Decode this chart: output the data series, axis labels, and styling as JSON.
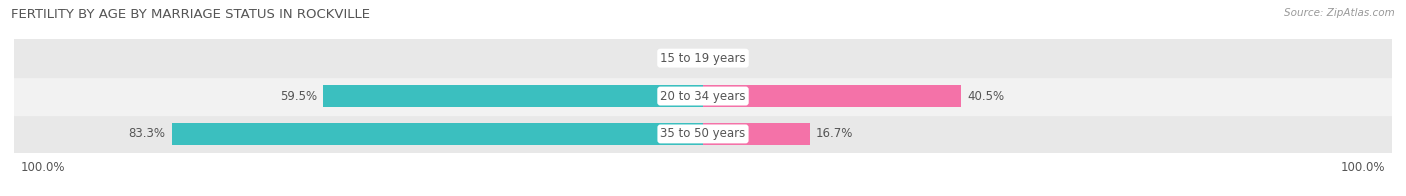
{
  "title": "FERTILITY BY AGE BY MARRIAGE STATUS IN ROCKVILLE",
  "source": "Source: ZipAtlas.com",
  "categories": [
    "35 to 50 years",
    "20 to 34 years",
    "15 to 19 years"
  ],
  "married_values": [
    83.3,
    59.5,
    0.0
  ],
  "unmarried_values": [
    16.7,
    40.5,
    0.0
  ],
  "married_color": "#3bbfbf",
  "unmarried_color": "#f472a8",
  "row_bg_colors": [
    "#e8e8e8",
    "#f2f2f2",
    "#e8e8e8"
  ],
  "label_color": "#555555",
  "title_color": "#555555",
  "axis_label_left": "100.0%",
  "axis_label_right": "100.0%",
  "background_color": "#ffffff",
  "bar_height": 0.58,
  "category_label_fontsize": 8.5,
  "value_label_fontsize": 8.5,
  "title_fontsize": 9.5,
  "source_fontsize": 7.5,
  "legend_fontsize": 8.5
}
